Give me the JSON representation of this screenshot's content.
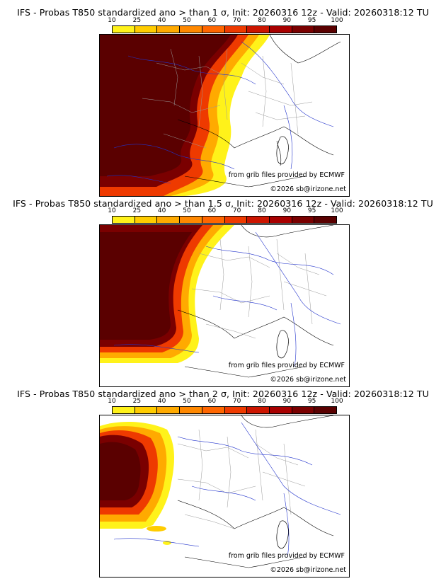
{
  "colorbar": {
    "labels": [
      "10",
      "25",
      "40",
      "50",
      "60",
      "70",
      "80",
      "90",
      "95",
      "100"
    ],
    "colors": [
      "#fff21a",
      "#ffcc00",
      "#ffaa00",
      "#ff8800",
      "#ff6600",
      "#ee3a00",
      "#cc1500",
      "#a80000",
      "#7a0000",
      "#5a0000"
    ]
  },
  "panels": [
    {
      "title": "IFS - Probas T850  standardized ano > than 1 σ, Init: 20260316 12z - Valid: 20260318:12 TU",
      "credit_source": "from grib files provided by ECMWF",
      "credit_copy": "©2026 sb@irizone.net"
    },
    {
      "title": "IFS - Probas T850  standardized ano > than 1.5 σ, Init: 20260316 12z - Valid: 20260318:12 TU",
      "credit_source": "from grib files provided by ECMWF",
      "credit_copy": "©2026 sb@irizone.net"
    },
    {
      "title": "IFS - Probas T850  standardized ano > than 2 σ, Init: 20260316 12z - Valid: 20260318:12 TU",
      "credit_source": "from grib files provided by ECMWF",
      "credit_copy": "©2026 sb@irizone.net"
    }
  ]
}
